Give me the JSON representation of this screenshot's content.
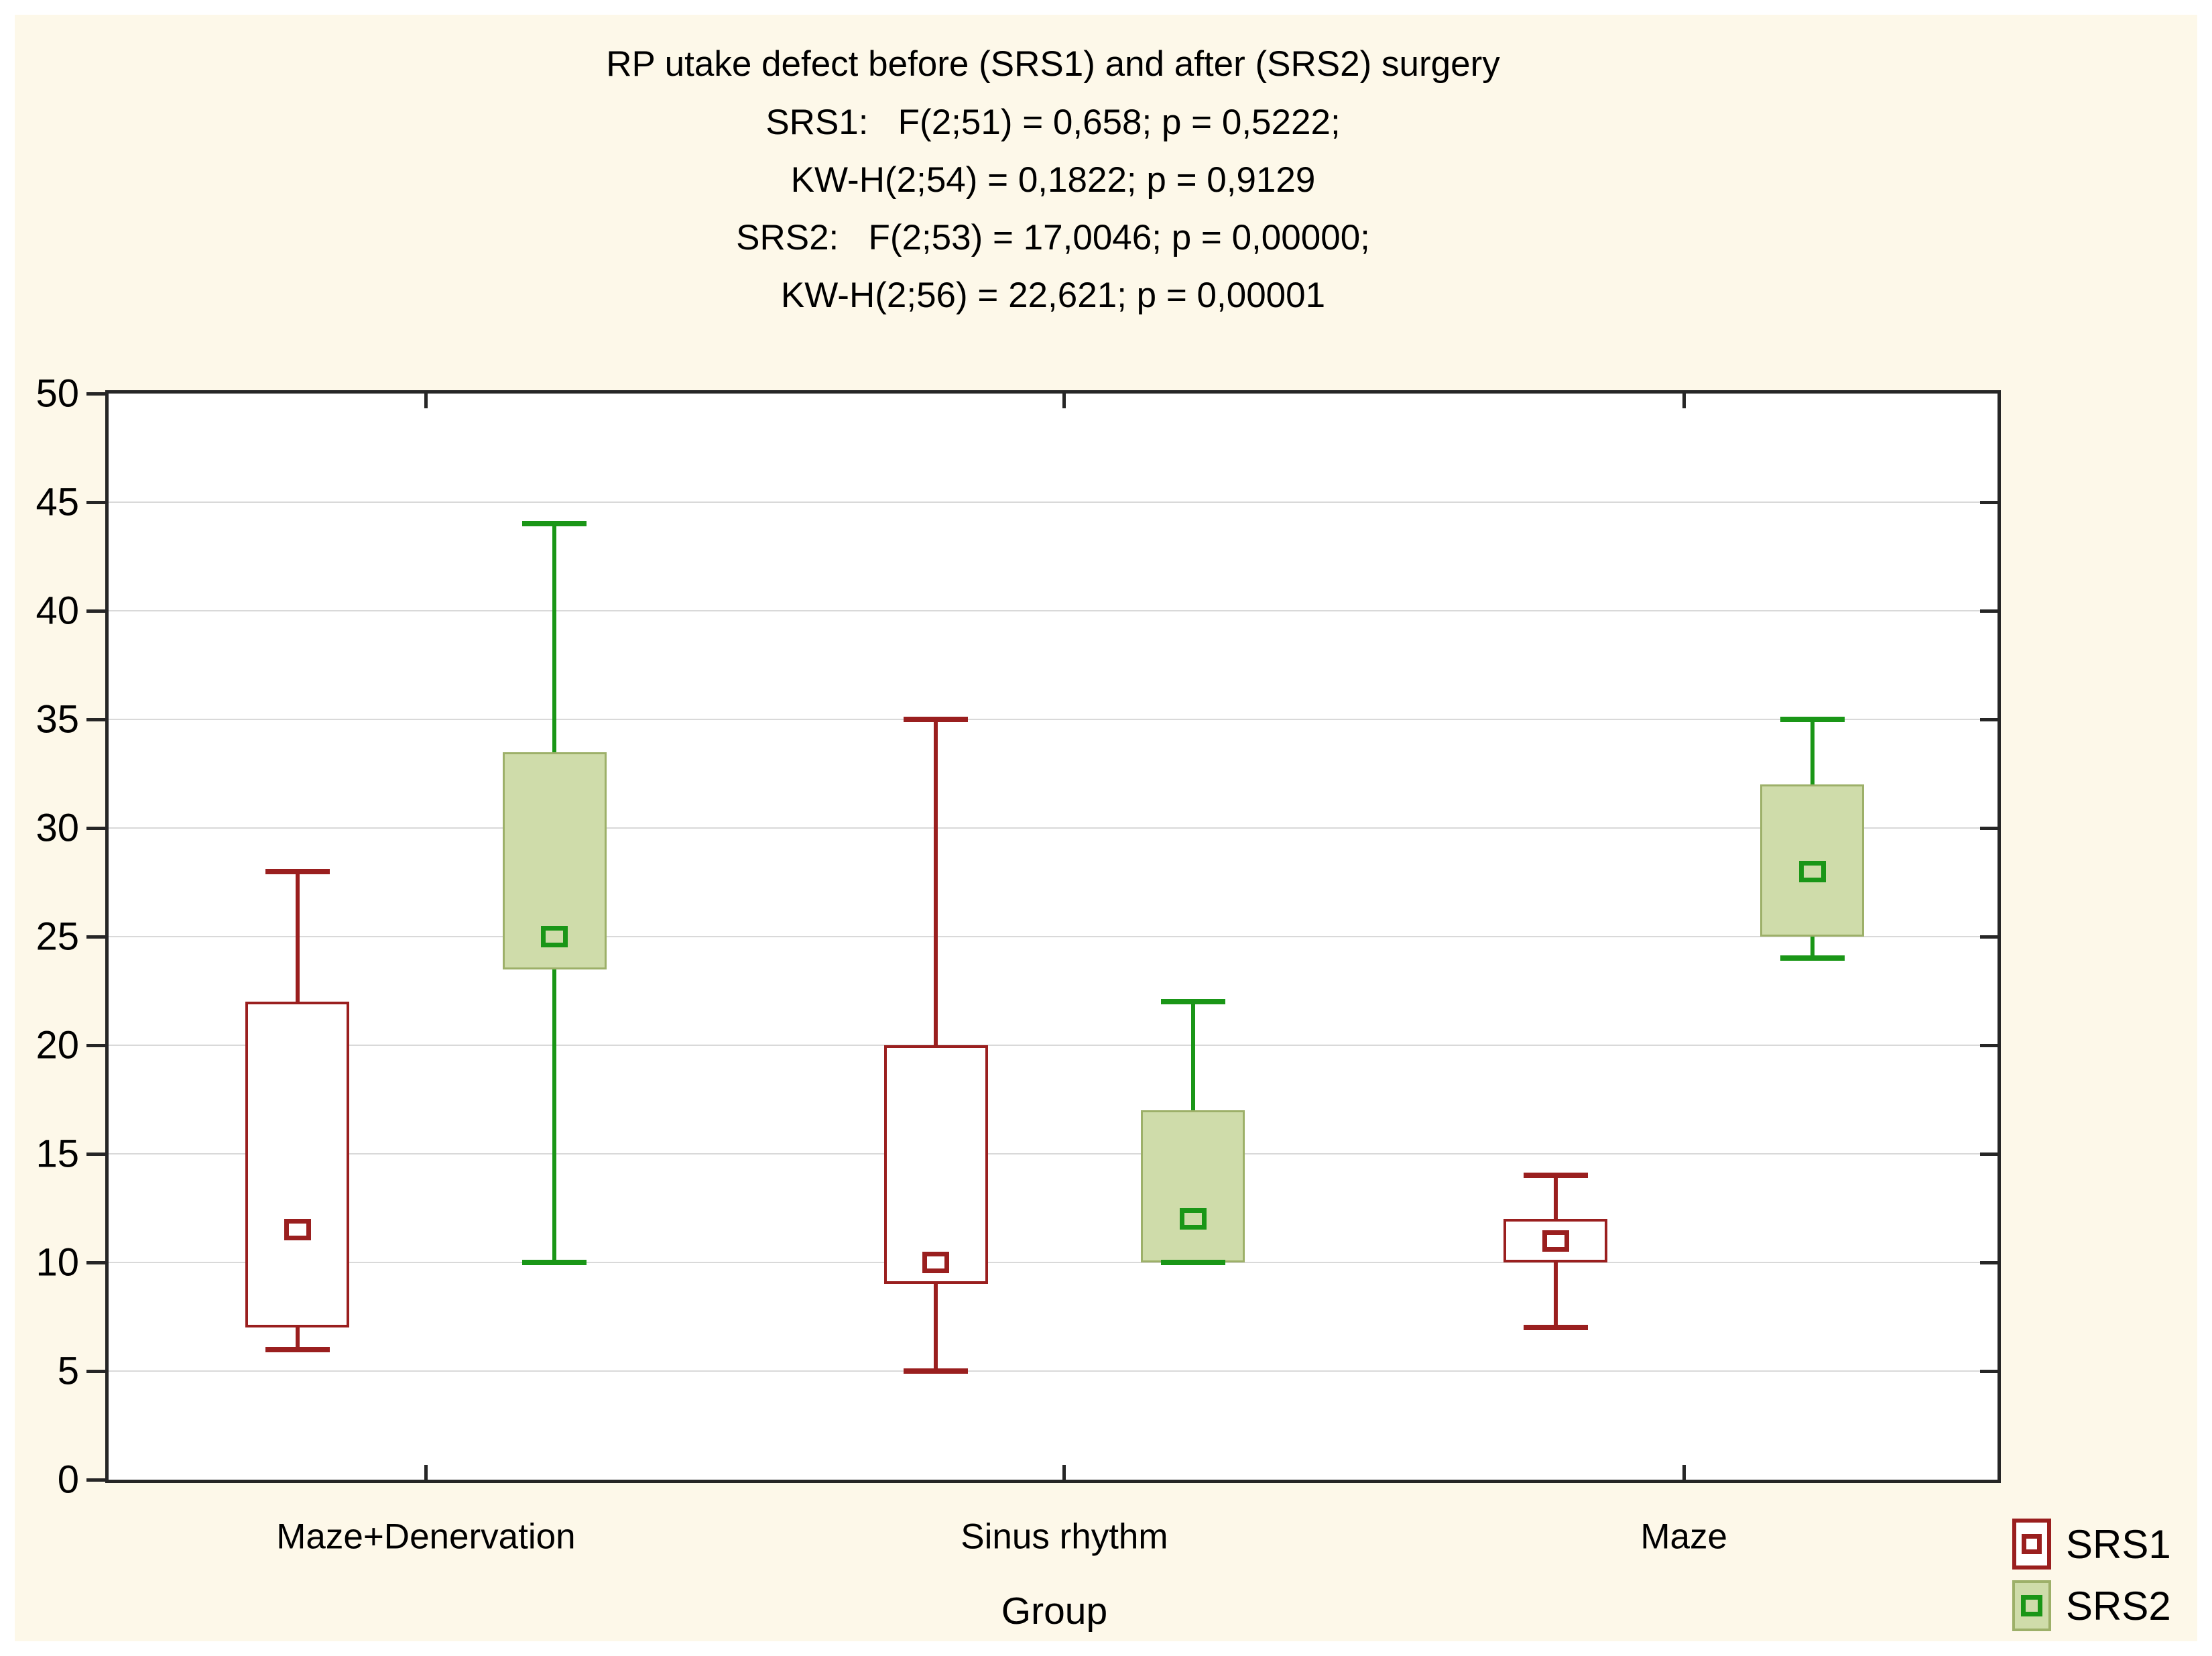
{
  "chart_data": {
    "type": "boxplot",
    "title": "RP utake defect before (SRS1) and after (SRS2) surgery",
    "stats_lines": [
      "SRS1:   F(2;51) = 0,658; p = 0,5222;",
      "KW-H(2;54) = 0,1822; p = 0,9129",
      "SRS2:   F(2;53) = 17,0046; p = 0,00000;",
      "KW-H(2;56) = 22,621; p = 0,00001"
    ],
    "xlabel": "Group",
    "ylabel": "",
    "ylim": [
      0,
      50
    ],
    "ytick_step": 5,
    "grid": "horizontal-only",
    "legend_position": "bottom-right-outside",
    "marker_meaning": "small open square = mean; box = 25-75%; whiskers = min-max",
    "categories": [
      "Maze+Denervation",
      "Sinus rhythm",
      "Maze"
    ],
    "series": [
      {
        "name": "SRS1",
        "color": "#9a1f1f",
        "box_fill": "#ffffff",
        "box_border": "#9a1f1f",
        "boxes": [
          {
            "category": "Maze+Denervation",
            "whisker_low": 6,
            "q1": 7,
            "mean": 11.5,
            "q3": 22,
            "whisker_high": 28
          },
          {
            "category": "Sinus rhythm",
            "whisker_low": 5,
            "q1": 9,
            "mean": 10,
            "q3": 20,
            "whisker_high": 35
          },
          {
            "category": "Maze",
            "whisker_low": 7,
            "q1": 10,
            "mean": 11,
            "q3": 12,
            "whisker_high": 14
          }
        ]
      },
      {
        "name": "SRS2",
        "color": "#1a9617",
        "box_fill": "#cfdcaa",
        "box_border": "#9db069",
        "boxes": [
          {
            "category": "Maze+Denervation",
            "whisker_low": 10,
            "q1": 23.5,
            "mean": 25,
            "q3": 33.5,
            "whisker_high": 44
          },
          {
            "category": "Sinus rhythm",
            "whisker_low": 10,
            "q1": 10,
            "mean": 12,
            "q3": 17,
            "whisker_high": 22
          },
          {
            "category": "Maze",
            "whisker_low": 24,
            "q1": 25,
            "mean": 28,
            "q3": 32,
            "whisker_high": 35
          }
        ]
      }
    ]
  },
  "style": {
    "panel_background": "#fdf8e9",
    "plot_background": "#ffffff",
    "axis_color": "#262626",
    "grid_color": "#d9d9d9",
    "text_color": "#000000",
    "srs1_color": "#9a1f1f",
    "srs2_line_color": "#1a9617",
    "srs2_fill": "#cfdcaa",
    "srs2_border": "#9db069"
  },
  "legend": {
    "srs1_label": "SRS1",
    "srs2_label": "SRS2"
  }
}
